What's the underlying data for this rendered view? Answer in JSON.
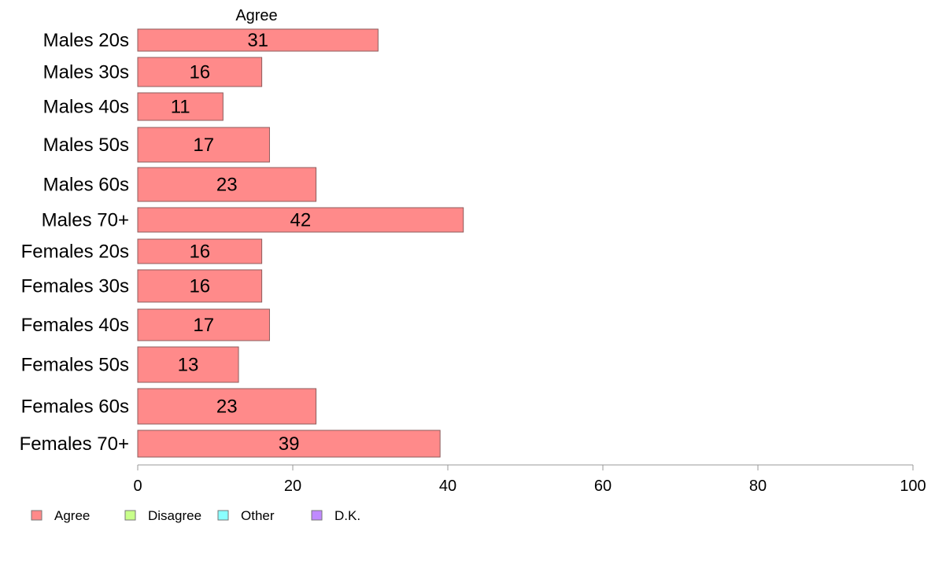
{
  "chart_data": {
    "type": "bar",
    "orientation": "horizontal",
    "title": "Agree",
    "categories": [
      "Males 20s",
      "Males 30s",
      "Males 40s",
      "Males 50s",
      "Males 60s",
      "Males 70+",
      "Females 20s",
      "Females 30s",
      "Females 40s",
      "Females 50s",
      "Females 60s",
      "Females 70+"
    ],
    "series": [
      {
        "name": "Agree",
        "color": "#ff8a8a",
        "values": [
          31,
          16,
          11,
          17,
          23,
          42,
          16,
          16,
          17,
          13,
          23,
          39
        ]
      }
    ],
    "data_labels": [
      "31",
      "16",
      "11",
      "17",
      "23",
      "42",
      "16",
      "16",
      "17",
      "13",
      "23",
      "39"
    ],
    "xlim": [
      0,
      100
    ],
    "x_ticks": [
      0,
      20,
      40,
      60,
      80,
      100
    ],
    "x_tick_labels": [
      "0",
      "20",
      "40",
      "60",
      "80",
      "100"
    ],
    "grid": false,
    "legend": {
      "placement": "bottom-left",
      "entries": [
        {
          "label": "Agree",
          "color": "#ff8a8a"
        },
        {
          "label": "Disagree",
          "color": "#c8ff8a"
        },
        {
          "label": "Other",
          "color": "#8affff"
        },
        {
          "label": "D.K.",
          "color": "#c08aff"
        }
      ]
    }
  }
}
